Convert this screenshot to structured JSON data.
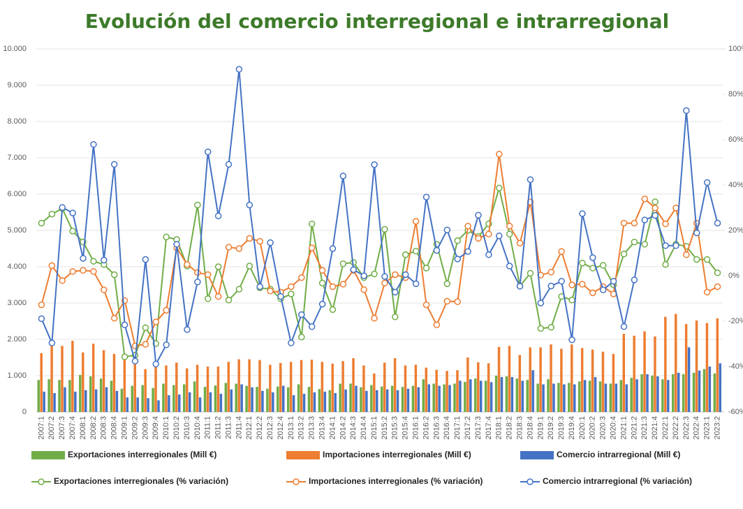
{
  "chart_data": {
    "type": "combo",
    "title": "Evolución del comercio interregional e intrarregional",
    "categories": [
      "2007:1",
      "2007:2",
      "2007:3",
      "2007:4",
      "2008:1",
      "2008:2",
      "2008:3",
      "2008:4",
      "2009:1",
      "2009:2",
      "2009:3",
      "2009:4",
      "2010:1",
      "2010:2",
      "2010:3",
      "2010:4",
      "2011:1",
      "2011:2",
      "2011:3",
      "2011:4",
      "2012:1",
      "2012:2",
      "2012:3",
      "2012:4",
      "2013:1",
      "2013:2",
      "2013:3",
      "2013:4",
      "2014:1",
      "2014:2",
      "2014:3",
      "2014:4",
      "2015:1",
      "2015:2",
      "2015:3",
      "2015:4",
      "2016:1",
      "2016:2",
      "2016:3",
      "2016:4",
      "2017:1",
      "2017:2",
      "2017:3",
      "2017:4",
      "2018:1",
      "2018:2",
      "2018:3",
      "2018:4",
      "2019:1",
      "2019:2",
      "2019:3",
      "2019:4",
      "2020:1",
      "2020:2",
      "2020:3",
      "2020:4",
      "2021:1",
      "2021:2",
      "2021:3",
      "2021:4",
      "2022:1",
      "2022:2",
      "2022:3",
      "2022:4",
      "2023:1",
      "2023:2"
    ],
    "series": [
      {
        "name": "Exportaciones interregionales (Mill €)",
        "type": "bar",
        "color": "#70ad47",
        "values": [
          880,
          900,
          880,
          880,
          1020,
          980,
          920,
          860,
          640,
          720,
          740,
          660,
          780,
          740,
          760,
          840,
          690,
          730,
          800,
          780,
          720,
          690,
          640,
          700,
          680,
          760,
          690,
          630,
          600,
          780,
          780,
          680,
          740,
          700,
          720,
          690,
          720,
          900,
          780,
          760,
          780,
          830,
          920,
          860,
          1000,
          980,
          920,
          880,
          780,
          900,
          800,
          800,
          840,
          860,
          840,
          780,
          880,
          940,
          1040,
          1000,
          900,
          1040,
          1040,
          1080,
          1180,
          1060
        ]
      },
      {
        "name": "Importaciones interregionales (Mill €)",
        "type": "bar",
        "color": "#ed7d31",
        "values": [
          1620,
          1850,
          1820,
          1960,
          1640,
          1880,
          1700,
          1600,
          1450,
          1480,
          1180,
          1270,
          1280,
          1360,
          1200,
          1300,
          1250,
          1250,
          1380,
          1450,
          1450,
          1430,
          1300,
          1350,
          1380,
          1430,
          1440,
          1380,
          1330,
          1400,
          1480,
          1280,
          1060,
          1360,
          1480,
          1280,
          1300,
          1220,
          1160,
          1130,
          1150,
          1500,
          1370,
          1340,
          1790,
          1820,
          1570,
          1780,
          1780,
          1860,
          1740,
          1860,
          1760,
          1720,
          1660,
          1600,
          2150,
          2100,
          2220,
          2080,
          2620,
          2700,
          2420,
          2520,
          2450,
          2580
        ]
      },
      {
        "name": "Comercio intrarregional (Mill €)",
        "type": "bar",
        "color": "#4472c4",
        "values": [
          560,
          520,
          680,
          560,
          600,
          620,
          680,
          580,
          400,
          400,
          380,
          320,
          460,
          480,
          540,
          400,
          540,
          500,
          620,
          760,
          680,
          580,
          540,
          720,
          460,
          500,
          540,
          560,
          520,
          620,
          720,
          580,
          600,
          620,
          600,
          640,
          680,
          760,
          720,
          740,
          860,
          900,
          860,
          820,
          960,
          960,
          860,
          1150,
          760,
          780,
          760,
          760,
          880,
          960,
          780,
          780,
          760,
          900,
          1040,
          980,
          880,
          1080,
          1780,
          1140,
          1250,
          1340
        ]
      },
      {
        "name": "Exportaciones interregionales  (% variación)",
        "type": "line",
        "axis": "y2",
        "color": "#70ad47",
        "values": [
          23.2,
          27.2,
          29.6,
          19.7,
          14.9,
          6.4,
          5,
          0.5,
          -35.7,
          -35,
          -22.9,
          -29.9,
          17.1,
          16,
          4.3,
          31.2,
          -10.1,
          4,
          -10.7,
          -5.9,
          4.3,
          -5.3,
          -5.9,
          -10.1,
          -8,
          -27,
          22.9,
          -3.2,
          -14.9,
          5.3,
          5.9,
          -0.8,
          0.8,
          20.5,
          -18.1,
          9.3,
          10.9,
          3.4,
          13.9,
          -3.5,
          15.5,
          20,
          17.3,
          22.9,
          38.7,
          18.4,
          -4.5,
          1.1,
          -23.2,
          -22.7,
          -9.1,
          -10.7,
          5.6,
          3.4,
          4.6,
          -4,
          9.6,
          14.9,
          13.9,
          32.6,
          5,
          13.9,
          13,
          7.2,
          7.2,
          1.3
        ]
      },
      {
        "name": "Importaciones interregionales (% variación)",
        "type": "line",
        "axis": "y2",
        "color": "#ed7d31",
        "values": [
          -12.8,
          4.5,
          -2.1,
          1.9,
          2.4,
          1.9,
          -6.2,
          -18.7,
          -10.9,
          -30.9,
          -30.2,
          -20.3,
          -15.2,
          12.3,
          5,
          1.4,
          0.5,
          -9.1,
          12.6,
          12,
          16.5,
          15.2,
          -6.7,
          -7.2,
          -4.8,
          -0.8,
          12.3,
          2.4,
          -4.8,
          -3.7,
          2.4,
          -6.1,
          -18.7,
          -3.2,
          0.5,
          -0.8,
          24,
          -12.8,
          -21.6,
          -11.2,
          -11.4,
          21.9,
          16.5,
          18.4,
          53.6,
          21.9,
          14.4,
          32.5,
          0.3,
          1.6,
          10.7,
          -4,
          -3.7,
          -7.5,
          -4.8,
          -8,
          23.2,
          23.2,
          33.9,
          29.9,
          22.9,
          29.9,
          9.3,
          23.2,
          -7.2,
          -4.8
        ]
      },
      {
        "name": "Comercio intrarregional (% variación)",
        "type": "line",
        "axis": "y2",
        "color": "#4472c4",
        "values": [
          -18.9,
          -29.6,
          30.1,
          27.7,
          7.7,
          57.9,
          6.9,
          49.1,
          -21.6,
          -37.6,
          7.2,
          -38.9,
          -30.4,
          13.9,
          -23.7,
          -2.7,
          54.6,
          26.4,
          49.1,
          91,
          31.2,
          -4.8,
          14.6,
          -9.1,
          -29.6,
          -17.1,
          -22.4,
          -12.5,
          12,
          44,
          2.7,
          0,
          49,
          -0.3,
          -7.2,
          0.5,
          -3.5,
          34.7,
          11.2,
          20.2,
          7.4,
          10.7,
          26.7,
          9.3,
          17.6,
          4.3,
          -4.6,
          42.4,
          -12,
          -4.5,
          -2.4,
          -28.2,
          27.4,
          8,
          -6.2,
          -2.4,
          -22.4,
          -1.8,
          24.6,
          26.6,
          13.3,
          13.3,
          72.8,
          18.9,
          41.1,
          23.2
        ]
      }
    ],
    "ylim": [
      0,
      10000
    ],
    "yticks": [
      0,
      {
        "value": 1000,
        "label": "1.000"
      },
      {
        "value": 2000,
        "label": "2.000"
      },
      {
        "value": 3000,
        "label": "3.000"
      },
      {
        "value": 4000,
        "label": "4.000"
      },
      {
        "value": 5000,
        "label": "5.000"
      },
      {
        "value": 6000,
        "label": "6.000"
      },
      {
        "value": 7000,
        "label": "7.000"
      },
      {
        "value": 8000,
        "label": "8.000"
      },
      {
        "value": 9000,
        "label": "9.000"
      },
      {
        "value": 10000,
        "label": "10.000"
      }
    ],
    "y2lim": [
      -60,
      100
    ],
    "y2ticks": [
      {
        "value": -60,
        "label": "-60%"
      },
      {
        "value": -40,
        "label": "-40%"
      },
      {
        "value": -20,
        "label": "-20%"
      },
      {
        "value": 0,
        "label": "0%"
      },
      {
        "value": 20,
        "label": "20%"
      },
      {
        "value": 40,
        "label": "40%"
      },
      {
        "value": 60,
        "label": "60%"
      },
      {
        "value": 80,
        "label": "80%"
      },
      {
        "value": 100,
        "label": "100%"
      }
    ],
    "grid": true,
    "legend": "bottom"
  }
}
